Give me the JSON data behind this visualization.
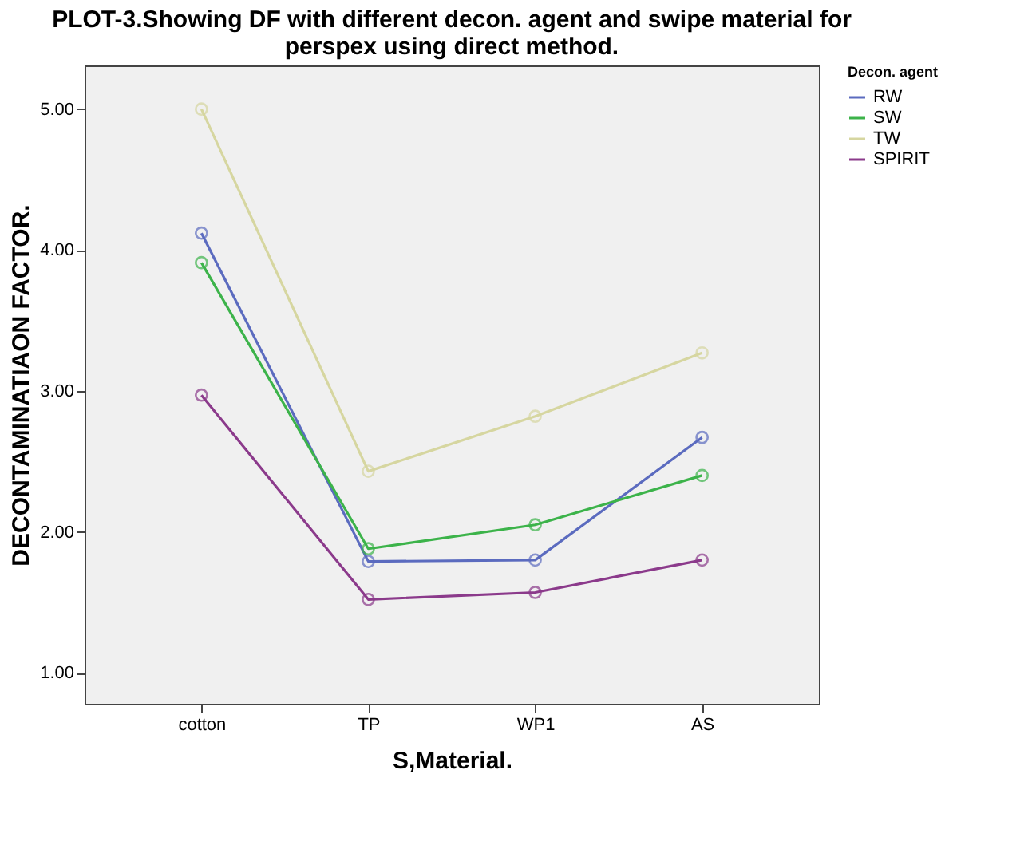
{
  "chart_data": {
    "type": "line",
    "title": [
      "PLOT-3.Showing DF with different decon. agent and swipe material for",
      "perspex using direct method."
    ],
    "xlabel": "S,Material.",
    "ylabel": "DECONTAMINATIAON FACTOR.",
    "legend_title": "Decon. agent",
    "categories": [
      "cotton",
      "TP",
      "WP1",
      "AS"
    ],
    "series": [
      {
        "name": "RW",
        "color": "#5b6bbf",
        "values": [
          4.12,
          1.79,
          1.8,
          2.67
        ]
      },
      {
        "name": "SW",
        "color": "#3cb34a",
        "values": [
          3.91,
          1.88,
          2.05,
          2.4
        ]
      },
      {
        "name": "TW",
        "color": "#d6d6a0",
        "values": [
          5.0,
          2.43,
          2.82,
          3.27
        ]
      },
      {
        "name": "SPIRIT",
        "color": "#8b3a8b",
        "values": [
          2.97,
          1.52,
          1.57,
          1.8
        ]
      }
    ],
    "ylim": [
      0.78,
      5.31
    ],
    "yticks": [
      {
        "value": 1,
        "label": "1.00"
      },
      {
        "value": 2,
        "label": "2.00"
      },
      {
        "value": 3,
        "label": "3.00"
      },
      {
        "value": 4,
        "label": "4.00"
      },
      {
        "value": 5,
        "label": "5.00"
      }
    ],
    "grid": false,
    "legend": "top right",
    "marker": "circle",
    "line_style": "solid"
  }
}
